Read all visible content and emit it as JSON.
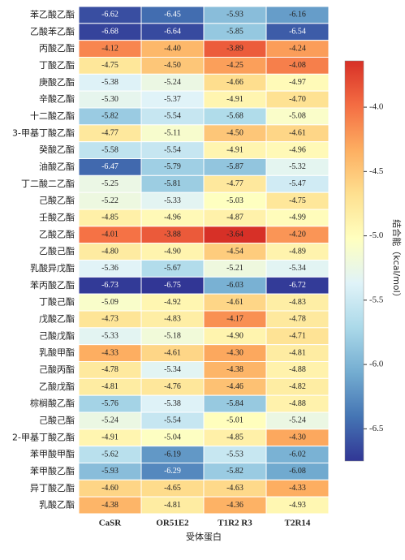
{
  "chart_data": {
    "type": "heatmap",
    "x_label": "受体蛋白",
    "colorbar_label": "结合能（kcal/mol）",
    "columns": [
      "CaSR",
      "OR51E2",
      "T1R2 R3",
      "T2R14"
    ],
    "rows": [
      "苯乙酸乙酯",
      "乙酸苯乙酯",
      "丙酸乙酯",
      "丁酸乙酯",
      "庚酸乙酯",
      "辛酸乙酯",
      "十二酸乙酯",
      "3-甲基丁酸乙酯",
      "癸酸乙酯",
      "油酸乙酯",
      "丁二酸二乙酯",
      "己酸乙酯",
      "壬酸乙酯",
      "乙酸乙酯",
      "乙酸己酯",
      "乳酸异戊酯",
      "苯丙酸乙酯",
      "丁酸己酯",
      "戊酸乙酯",
      "己酸戊酯",
      "乳酸甲酯",
      "己酸丙酯",
      "乙酸戊酯",
      "棕榈酸乙酯",
      "己酸己酯",
      "2-甲基丁酸乙酯",
      "苯甲酸甲酯",
      "苯甲酸乙酯",
      "异丁酸乙酯",
      "乳酸乙酯"
    ],
    "values": [
      [
        -6.62,
        -6.45,
        -5.93,
        -6.16
      ],
      [
        -6.68,
        -6.64,
        -5.85,
        -6.54
      ],
      [
        -4.12,
        -4.4,
        -3.89,
        -4.24
      ],
      [
        -4.75,
        -4.5,
        -4.25,
        -4.08
      ],
      [
        -5.38,
        -5.24,
        -4.66,
        -4.97
      ],
      [
        -5.3,
        -5.37,
        -4.91,
        -4.7
      ],
      [
        -5.82,
        -5.54,
        -5.68,
        -5.08
      ],
      [
        -4.77,
        -5.11,
        -4.5,
        -4.61
      ],
      [
        -5.58,
        -5.54,
        -4.91,
        -4.96
      ],
      [
        -6.47,
        -5.79,
        -5.87,
        -5.32
      ],
      [
        -5.25,
        -5.81,
        -4.77,
        -5.47
      ],
      [
        -5.22,
        -5.33,
        -5.03,
        -4.75
      ],
      [
        -4.85,
        -4.96,
        -4.87,
        -4.99
      ],
      [
        -4.01,
        -3.88,
        -3.64,
        -4.2
      ],
      [
        -4.8,
        -4.9,
        -4.54,
        -4.89
      ],
      [
        -5.36,
        -5.67,
        -5.21,
        -5.34
      ],
      [
        -6.73,
        -6.75,
        -6.03,
        -6.72
      ],
      [
        -5.09,
        -4.92,
        -4.61,
        -4.83
      ],
      [
        -4.73,
        -4.83,
        -4.17,
        -4.78
      ],
      [
        -5.33,
        -5.18,
        -4.9,
        -4.71
      ],
      [
        -4.33,
        -4.61,
        -4.3,
        -4.81
      ],
      [
        -4.78,
        -5.34,
        -4.38,
        -4.88
      ],
      [
        -4.81,
        -4.76,
        -4.46,
        -4.82
      ],
      [
        -5.76,
        -5.38,
        -5.84,
        -4.88
      ],
      [
        -5.24,
        -5.54,
        -5.01,
        -5.24
      ],
      [
        -4.91,
        -5.04,
        -4.85,
        -4.3
      ],
      [
        -5.62,
        -6.19,
        -5.53,
        -6.02
      ],
      [
        -5.93,
        -6.29,
        -5.82,
        -6.08
      ],
      [
        -4.6,
        -4.65,
        -4.63,
        -4.33
      ],
      [
        -4.38,
        -4.81,
        -4.36,
        -4.93
      ]
    ],
    "value_labels": [
      [
        "-6.62",
        "-6.45",
        "-5.93",
        "-6.16"
      ],
      [
        "-6.68",
        "-6.64",
        "-5.85",
        "-6.54"
      ],
      [
        "-4.12",
        "-4.40",
        "-3.89",
        "-4.24"
      ],
      [
        "-4.75",
        "-4.50",
        "-4.25",
        "-4.08"
      ],
      [
        "-5.38",
        "-5.24",
        "-4.66",
        "-4.97"
      ],
      [
        "-5.30",
        "-5.37",
        "-4.91",
        "-4.70"
      ],
      [
        "-5.82",
        "-5.54",
        "-5.68",
        "-5.08"
      ],
      [
        "-4.77",
        "-5.11",
        "-4.50",
        "-4.61"
      ],
      [
        "-5.58",
        "-5.54",
        "-4.91",
        "-4.96"
      ],
      [
        "-6.47",
        "-5.79",
        "-5.87",
        "-5.32"
      ],
      [
        "-5.25",
        "-5.81",
        "-4.77",
        "-5.47"
      ],
      [
        "-5.22",
        "-5.33",
        "-5.03",
        "-4.75"
      ],
      [
        "-4.85",
        "-4.96",
        "-4.87",
        "-4.99"
      ],
      [
        "-4.01",
        "-3.88",
        "-3.64",
        "-4.20"
      ],
      [
        "-4.80",
        "-4.90",
        "-4.54",
        "-4.89"
      ],
      [
        "-5.36",
        "-5.67",
        "-5.21",
        "-5.34"
      ],
      [
        "-6.73",
        "-6.75",
        "-6.03",
        "-6.72"
      ],
      [
        "-5.09",
        "-4.92",
        "-4.61",
        "-4.83"
      ],
      [
        "-4.73",
        "-4.83",
        "-4.17",
        "-4.78"
      ],
      [
        "-5.33",
        "-5.18",
        "-4.90",
        "-4.71"
      ],
      [
        "-4.33",
        "-4.61",
        "-4.30",
        "-4.81"
      ],
      [
        "-4.78",
        "-5.34",
        "-4.38",
        "-4.88"
      ],
      [
        "-4.81",
        "-4.76",
        "-4.46",
        "-4.82"
      ],
      [
        "-5.76",
        "-5.38",
        "-5.84",
        "-4.88"
      ],
      [
        "-5.24",
        "-5.54",
        "-5.01",
        "-5.24"
      ],
      [
        "-4.91",
        "-5.04",
        "-4.85",
        "-4.30"
      ],
      [
        "-5.62",
        "-6.19",
        "-5.53",
        "-6.02"
      ],
      [
        "-5.93",
        "-6.29",
        "-5.82",
        "-6.08"
      ],
      [
        "-4.60",
        "-4.65",
        "-4.63",
        "-4.33"
      ],
      [
        "-4.38",
        "-4.81",
        "-4.36",
        "-4.93"
      ]
    ],
    "clim": [
      -6.75,
      -3.64
    ],
    "cticks": [
      {
        "value": -4,
        "label": "-4.0"
      },
      -4.5,
      {
        "value": -5,
        "label": "-5.0"
      },
      -5.5,
      {
        "value": -6,
        "label": "-6.0"
      },
      -6.5
    ],
    "colormap": [
      "#313695",
      "#4575b4",
      "#74add1",
      "#abd9e9",
      "#e0f3f8",
      "#ffffbf",
      "#fee090",
      "#fdae61",
      "#f46d43",
      "#d73027"
    ]
  }
}
